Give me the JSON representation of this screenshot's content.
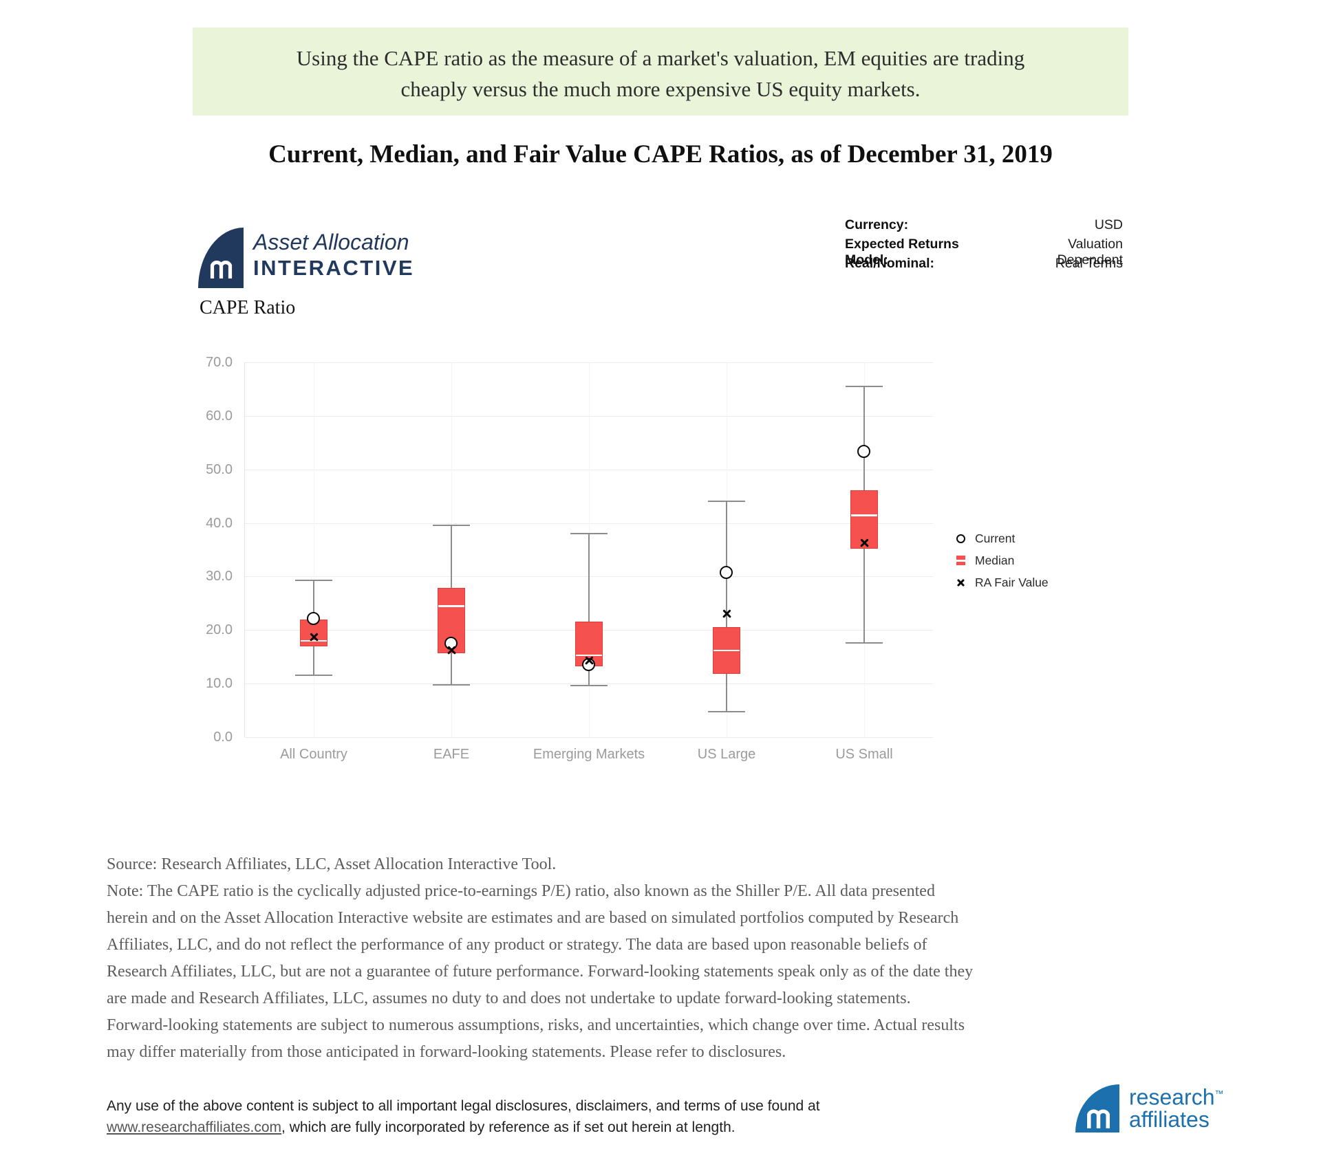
{
  "banner": {
    "text": "Using the CAPE ratio as the measure of a market's valuation, EM equities are trading cheaply versus the much more expensive US equity markets."
  },
  "title": "Current, Median, and Fair Value CAPE Ratios, as of December 31, 2019",
  "header": {
    "logo": {
      "line1": "Asset Allocation",
      "line2": "INTERACTIVE"
    },
    "settings": {
      "rows": [
        {
          "label": "Currency:",
          "value": "USD"
        },
        {
          "label": "Expected Returns Model:",
          "value": "Valuation Dependent"
        },
        {
          "label": "Real/Nominal:",
          "value": "Real Terms"
        }
      ]
    }
  },
  "chart_data": {
    "type": "boxplot",
    "title": "CAPE Ratio",
    "categories": [
      "All Country",
      "EAFE",
      "Emerging Markets",
      "US Large",
      "US Small"
    ],
    "ylim": [
      0,
      70
    ],
    "ytick_step": 10,
    "grid": true,
    "legend_position": "right",
    "boxes": [
      {
        "category": "All Country",
        "whisker_low": 11.5,
        "q1": 17.0,
        "median": 18.0,
        "q3": 22.0,
        "whisker_high": 29.3
      },
      {
        "category": "EAFE",
        "whisker_low": 9.8,
        "q1": 15.7,
        "median": 24.5,
        "q3": 27.9,
        "whisker_high": 39.6
      },
      {
        "category": "Emerging Markets",
        "whisker_low": 9.6,
        "q1": 13.2,
        "median": 15.3,
        "q3": 21.6,
        "whisker_high": 38.0
      },
      {
        "category": "US Large",
        "whisker_low": 4.8,
        "q1": 11.8,
        "median": 16.2,
        "q3": 20.5,
        "whisker_high": 44.0
      },
      {
        "category": "US Small",
        "whisker_low": 17.6,
        "q1": 35.2,
        "median": 41.4,
        "q3": 46.1,
        "whisker_high": 65.5
      }
    ],
    "points": [
      {
        "name": "Current",
        "marker": "circle",
        "values": [
          22.1,
          17.5,
          13.5,
          30.7,
          53.3
        ]
      },
      {
        "name": "RA Fair Value",
        "marker": "x",
        "values": [
          18.7,
          16.2,
          14.3,
          23.0,
          36.3
        ]
      }
    ],
    "legend": [
      {
        "label": "Current",
        "marker": "circle"
      },
      {
        "label": "Median",
        "marker": "median-box"
      },
      {
        "label": "RA Fair Value",
        "marker": "x"
      }
    ],
    "colors": {
      "box_fill": "#f5514e",
      "box_border": "#e23d3d",
      "median_line": "#ffffff",
      "whisker": "#8c8c8c",
      "marker": "#0a0a0a",
      "axis_text": "#9b9b9b",
      "gridline": "#ececec"
    }
  },
  "source_note": {
    "source": "Source: Research Affiliates, LLC, Asset Allocation Interactive Tool.",
    "note": "Note: The CAPE ratio is the cyclically adjusted price-to-earnings P/E) ratio, also known as the Shiller P/E. All data presented herein and on the Asset Allocation Interactive website are estimates and are based on simulated portfolios computed by Research Affiliates, LLC, and do not reflect the performance of any product or strategy. The data are based upon reasonable beliefs of Research Affiliates, LLC, but are not a guarantee of future performance. Forward-looking statements speak only as of the date they are made and Research Affiliates, LLC, assumes no duty to and does not undertake to update forward-looking statements. Forward-looking statements are subject to numerous assumptions, risks, and uncertainties, which change over time. Actual results may differ materially from those anticipated in forward-looking statements. Please refer to disclosures.",
    "colors": {
      "banner_bg": "#e9f4d9",
      "brand_navy": "#21395c",
      "brand_blue": "#1b70ad"
    }
  },
  "footer": {
    "text_before_link": "Any use of the above content is subject to all important legal disclosures, disclaimers, and terms of use found at ",
    "link_text": "www.researchaffiliates.com",
    "text_after_link": ", which are fully incorporated by reference as if set out herein at length.",
    "logo": {
      "line1": "research",
      "tm": "™",
      "line2": "affiliates"
    }
  }
}
